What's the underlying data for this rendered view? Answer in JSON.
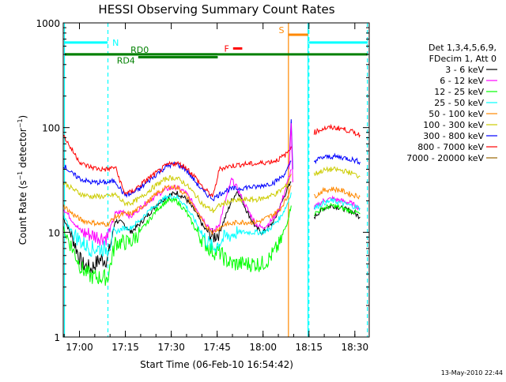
{
  "chart_data": {
    "type": "line",
    "title": "HESSI Observing Summary Count Rates",
    "xlabel": "Start Time (06-Feb-10 16:54:42)",
    "ylabel": "Count Rate (s⁻¹ detector⁻¹)",
    "ylabel_main": "Count Rate (s",
    "ylabel_sup1": "−1",
    "ylabel_mid": " detector",
    "ylabel_sup2": "−1",
    "ylabel_end": ")",
    "yscale": "log",
    "xlim": [
      0,
      100
    ],
    "ylim": [
      1,
      1000
    ],
    "x_unit": "minutes after 16:54:42",
    "xticks": [
      {
        "t": 5.3,
        "label": "17:00"
      },
      {
        "t": 20.3,
        "label": "17:15"
      },
      {
        "t": 35.3,
        "label": "17:30"
      },
      {
        "t": 50.3,
        "label": "17:45"
      },
      {
        "t": 65.3,
        "label": "18:00"
      },
      {
        "t": 80.3,
        "label": "18:15"
      },
      {
        "t": 95.3,
        "label": "18:30"
      }
    ],
    "yticks": [
      {
        "v": 1,
        "label": "1"
      },
      {
        "v": 10,
        "label": "10"
      },
      {
        "v": 100,
        "label": "100"
      },
      {
        "v": 1000,
        "label": "1000"
      }
    ],
    "legend": {
      "header1": "Det 1,3,4,5,6,9,",
      "header2": "FDecim 1, Att 0",
      "position": "right"
    },
    "series": [
      {
        "name": "3 - 6 keV",
        "color": "#000000",
        "x": [
          0,
          3,
          6,
          9,
          12,
          14.5,
          17,
          19.9,
          22,
          25,
          28,
          31,
          34,
          37,
          40,
          43,
          46,
          49,
          51,
          53,
          55,
          57,
          60,
          63,
          65,
          67,
          69,
          71,
          73,
          74.5,
          76,
          80,
          82,
          85,
          88,
          91,
          94,
          97
        ],
        "y": [
          14,
          9,
          5,
          4.5,
          5.5,
          5.5,
          13,
          12,
          10,
          12,
          15,
          19,
          22,
          24,
          21,
          16,
          11,
          9,
          10,
          14,
          20,
          25,
          16,
          11,
          10,
          11,
          13,
          18,
          25,
          30,
          null,
          null,
          14,
          17,
          18,
          17,
          16,
          14
        ]
      },
      {
        "name": "6 - 12 keV",
        "color": "#ff00ff",
        "x": [
          0,
          3,
          6,
          9,
          12,
          14.5,
          17,
          19.9,
          22,
          25,
          28,
          31,
          34,
          37,
          40,
          43,
          46,
          49,
          51,
          53,
          55,
          57,
          60,
          63,
          65,
          67,
          69,
          71,
          73,
          74.5,
          76,
          80,
          82,
          85,
          88,
          91,
          94,
          97
        ],
        "y": [
          17,
          13,
          10,
          9.5,
          9,
          9,
          15,
          16,
          14,
          17,
          20,
          23,
          26,
          27,
          24,
          18,
          13,
          10,
          12,
          20,
          32,
          26,
          17,
          12,
          11,
          12,
          14,
          18,
          28,
          40,
          null,
          null,
          17,
          20,
          21,
          20,
          19,
          17
        ]
      },
      {
        "name": "12 - 25 keV",
        "color": "#00ff00",
        "x": [
          0,
          3,
          6,
          9,
          12,
          14.5,
          17,
          19.9,
          22,
          25,
          28,
          31,
          34,
          37,
          40,
          43,
          46,
          49,
          51,
          53,
          55,
          57,
          60,
          63,
          65,
          67,
          69,
          71,
          73,
          74.5,
          76,
          80,
          82,
          85,
          88,
          91,
          94,
          97
        ],
        "y": [
          11,
          7,
          4.5,
          3.8,
          3.7,
          3.7,
          8,
          8,
          8,
          10,
          13,
          17,
          20,
          20,
          16,
          11,
          8,
          6.5,
          6.5,
          5.5,
          5,
          5,
          5,
          5,
          5,
          5.5,
          6.5,
          8,
          12,
          18,
          null,
          null,
          15,
          17,
          18,
          17,
          16,
          15
        ]
      },
      {
        "name": "25 - 50 keV",
        "color": "#00ffff",
        "x": [
          0,
          3,
          6,
          9,
          12,
          14.5,
          17,
          19.9,
          22,
          25,
          28,
          31,
          34,
          37,
          40,
          43,
          46,
          49,
          51,
          53,
          55,
          57,
          60,
          63,
          65,
          67,
          69,
          71,
          73,
          74.5,
          76,
          80,
          82,
          85,
          88,
          91,
          94,
          97
        ],
        "y": [
          14,
          10,
          8,
          7,
          7,
          7,
          10,
          11,
          11,
          13,
          16,
          19,
          22,
          22,
          18,
          13,
          9,
          7,
          8,
          9,
          9.5,
          10,
          10,
          10,
          10,
          10.5,
          12,
          14,
          18,
          24,
          null,
          null,
          17,
          19,
          20,
          19,
          18,
          17
        ]
      },
      {
        "name": "50 - 100 keV",
        "color": "#ff8800",
        "x": [
          0,
          3,
          6,
          9,
          12,
          14.5,
          17,
          19.9,
          22,
          25,
          28,
          31,
          34,
          37,
          40,
          43,
          46,
          49,
          51,
          53,
          55,
          57,
          60,
          63,
          65,
          67,
          69,
          71,
          73,
          74.5,
          76,
          80,
          82,
          85,
          88,
          91,
          94,
          97
        ],
        "y": [
          18,
          15,
          13,
          12.5,
          12,
          12,
          14,
          15,
          15,
          17,
          20,
          24,
          27,
          27,
          23,
          17,
          12,
          10,
          11,
          12,
          12,
          12.5,
          12.5,
          12.5,
          13,
          14,
          15,
          17,
          21,
          28,
          null,
          null,
          22,
          25,
          26,
          25,
          23,
          22
        ]
      },
      {
        "name": "100 - 300 keV",
        "color": "#cccc00",
        "x": [
          0,
          3,
          6,
          9,
          12,
          14.5,
          17,
          19.9,
          22,
          25,
          28,
          31,
          34,
          37,
          40,
          43,
          46,
          49,
          51,
          53,
          55,
          57,
          60,
          63,
          65,
          67,
          69,
          71,
          73,
          74.5,
          76,
          80,
          82,
          85,
          88,
          91,
          94,
          97
        ],
        "y": [
          30,
          26,
          23,
          22,
          22,
          22,
          23,
          19,
          19,
          21,
          25,
          29,
          33,
          33,
          29,
          23,
          18,
          16,
          18,
          19,
          20,
          20,
          20.5,
          20.5,
          21,
          22,
          23,
          25,
          28,
          36,
          null,
          null,
          36,
          39,
          40,
          39,
          37,
          34
        ]
      },
      {
        "name": "300 - 800 keV",
        "color": "#0000ff",
        "x": [
          0,
          3,
          6,
          9,
          12,
          14.5,
          17,
          19.9,
          22,
          25,
          28,
          31,
          34,
          37,
          40,
          43,
          46,
          49,
          51,
          53,
          55,
          57,
          60,
          63,
          65,
          67,
          69,
          71,
          73,
          74.5,
          76,
          80,
          82,
          85,
          88,
          91,
          94,
          97
        ],
        "y": [
          44,
          36,
          32,
          30,
          30,
          30,
          31,
          23,
          23,
          26,
          31,
          37,
          43,
          45,
          40,
          31,
          24,
          21,
          23,
          25,
          26,
          26,
          27,
          27,
          28,
          29,
          30,
          33,
          38,
          48,
          null,
          null,
          48,
          52,
          53,
          52,
          50,
          47
        ]
      },
      {
        "name": "800 - 7000 keV",
        "color": "#ff0000",
        "x": [
          0,
          3,
          6,
          9,
          12,
          14.5,
          17,
          19.9,
          22,
          25,
          28,
          31,
          34,
          37,
          40,
          43,
          46,
          49,
          51,
          53,
          55,
          57,
          60,
          63,
          65,
          67,
          69,
          71,
          73,
          74.5,
          76,
          80,
          82,
          85,
          88,
          91,
          94,
          97
        ],
        "y": [
          85,
          60,
          45,
          42,
          40,
          40,
          42,
          24,
          24,
          28,
          33,
          38,
          44,
          46,
          42,
          34,
          26,
          22,
          40,
          42,
          43,
          44,
          45,
          45,
          46,
          47,
          48,
          51,
          56,
          66,
          null,
          null,
          90,
          98,
          100,
          98,
          92,
          85
        ]
      },
      {
        "name": "7000 - 20000 keV",
        "color": "#996600",
        "x": [],
        "y": []
      }
    ],
    "extra_traces": [
      {
        "color": "#0000ff",
        "x": [
          74,
          74.5,
          75
        ],
        "y": [
          60,
          120,
          40
        ]
      },
      {
        "color": "#ff00ff",
        "x": [
          73.8,
          74.5,
          75
        ],
        "y": [
          40,
          110,
          30
        ]
      }
    ],
    "state_bars": [
      {
        "label": "N",
        "color": "#00ffff",
        "x0": 0.5,
        "x1": 14.5,
        "y": 650,
        "show_label": true
      },
      {
        "label": "N",
        "color": "#00ffff",
        "x0": 80.3,
        "x1": 99.5,
        "y": 650,
        "show_label": false
      },
      {
        "label": "RD0",
        "color": "#008000",
        "x0": 0.5,
        "x1": 99.5,
        "y": 500,
        "show_label": true
      },
      {
        "label": "RD4",
        "color": "#008000",
        "x0": 0.5,
        "x1": 50.3,
        "y": 500,
        "show_label": false
      },
      {
        "label": "RD4",
        "color": "#008000",
        "x0": 24.5,
        "x1": 50.5,
        "y": 470,
        "show_label": true
      },
      {
        "label": "F",
        "color": "#ff0000",
        "x0": 55.5,
        "x1": 58.5,
        "y": 570,
        "show_label": true
      },
      {
        "label": "S",
        "color": "#ff8800",
        "x0": 73.5,
        "x1": 80.0,
        "y": 770,
        "show_label": true
      }
    ],
    "vlines": [
      {
        "x": 0.4,
        "color": "#00ffff",
        "dashed": false
      },
      {
        "x": 14.6,
        "color": "#00ffff",
        "dashed": true
      },
      {
        "x": 73.6,
        "color": "#ff8800",
        "dashed": false
      },
      {
        "x": 80.0,
        "color": "#00ffff",
        "dashed": false
      },
      {
        "x": 80.3,
        "color": "#00ffff",
        "dashed": true
      },
      {
        "x": 99.4,
        "color": "#00ffff",
        "dashed": true
      }
    ],
    "footer_timestamp": "13-May-2010 22:44"
  }
}
